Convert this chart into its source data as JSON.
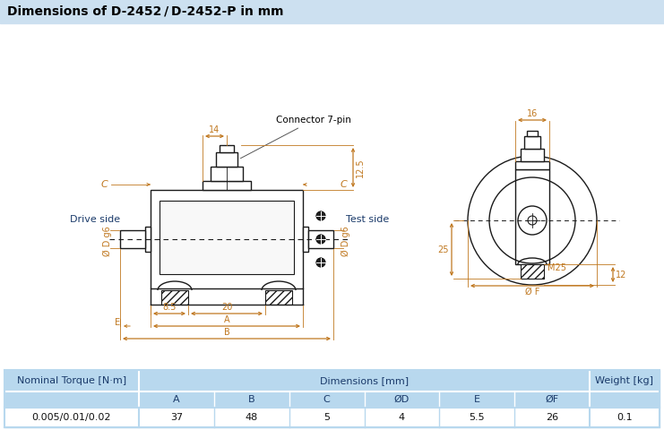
{
  "title": "Dimensions of D-2452 / D-2452-P in mm",
  "title_bg": "#cce0f0",
  "drawing_bg": "#ffffff",
  "table_bg_light": "#b8d8ee",
  "table_bg_medium": "#8bbfdc",
  "table_text_dark": "#1a3a6a",
  "line_color": "#1a1a1a",
  "dim_color": "#c07820",
  "label_color": "#c07820",
  "drive_color": "#1a3a6a",
  "table_headers_row1": [
    "Nominal Torque [N·m]",
    "Dimensions [mm]",
    "Weight [kg]"
  ],
  "table_headers_row2": [
    "A",
    "B",
    "C",
    "ØD",
    "E",
    "ØF"
  ],
  "table_data": [
    "0.005/0.01/0.02",
    "37",
    "48",
    "5",
    "4",
    "5.5",
    "26",
    "0.1"
  ],
  "connector_label": "Connector 7-pin",
  "drive_side": "Drive side",
  "test_side": "Test side",
  "dim_14": "14",
  "dim_125": "12.5",
  "dim_85": "8.5",
  "dim_20": "20",
  "dim_16": "16",
  "dim_12": "12",
  "dim_25": "25",
  "dim_M25": "M25",
  "dim_dD_g6": "Ø D g6",
  "dim_C": "C",
  "dim_A": "A",
  "dim_B": "B",
  "dim_E": "E",
  "dim_F": "Ø F",
  "fig_w": 7.41,
  "fig_h": 4.8,
  "dpi": 100
}
